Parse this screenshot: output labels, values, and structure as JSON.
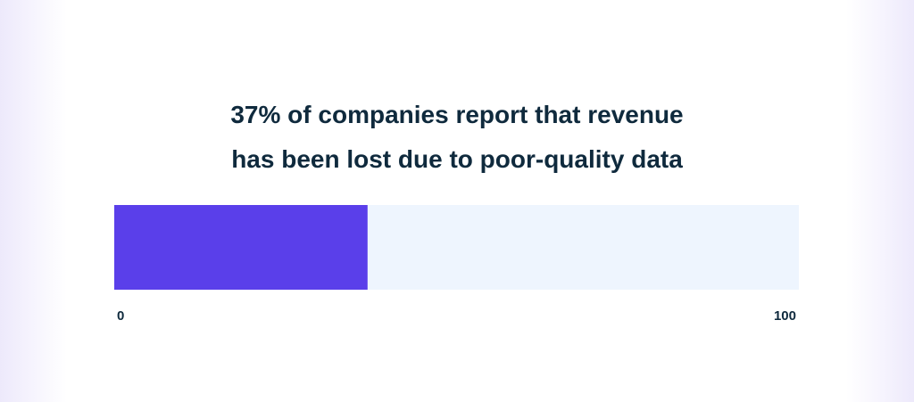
{
  "chart_data": {
    "type": "bar",
    "orientation": "horizontal",
    "title": "37% of companies report that revenue\nhas been lost due to poor-quality data",
    "values": [
      37
    ],
    "color": "#5a3fea",
    "track_color": "#eef5fe",
    "xlim": [
      0,
      100
    ],
    "xticks": [
      0,
      100
    ]
  }
}
